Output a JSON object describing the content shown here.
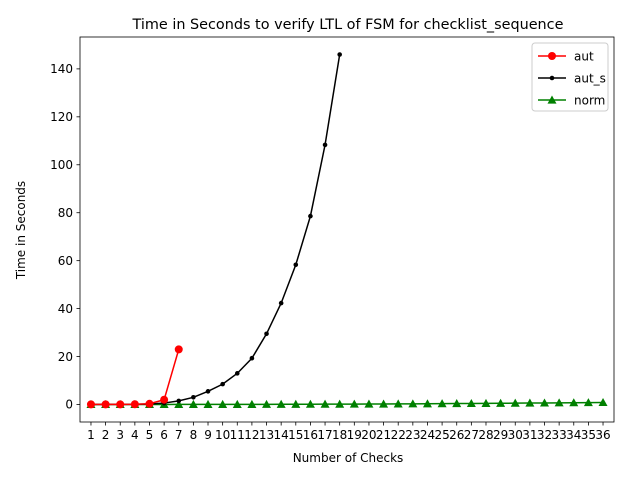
{
  "chart_data": {
    "type": "line",
    "title": "Time in Seconds to verify LTL of FSM for checklist_sequence",
    "xlabel": "Number of Checks",
    "ylabel": "Time in Seconds",
    "xlim": [
      0.25,
      36.75
    ],
    "ylim": [
      -7.3,
      153.3
    ],
    "x_ticks": [
      1,
      2,
      3,
      4,
      5,
      6,
      7,
      8,
      9,
      10,
      11,
      12,
      13,
      14,
      15,
      16,
      17,
      18,
      19,
      20,
      21,
      22,
      23,
      24,
      25,
      26,
      27,
      28,
      29,
      30,
      31,
      32,
      33,
      34,
      35,
      36
    ],
    "y_ticks": [
      0,
      20,
      40,
      60,
      80,
      100,
      120,
      140
    ],
    "legend_position": "top-right",
    "series": [
      {
        "name": "aut",
        "color": "#ff0000",
        "marker": "circle",
        "x": [
          1,
          2,
          3,
          4,
          5,
          6,
          7
        ],
        "y": [
          0.05,
          0.05,
          0.05,
          0.1,
          0.3,
          2.0,
          23.0
        ]
      },
      {
        "name": "aut_s",
        "color": "#000000",
        "marker": "point",
        "x": [
          1,
          2,
          3,
          4,
          5,
          6,
          7,
          8,
          9,
          10,
          11,
          12,
          13,
          14,
          15,
          16,
          17,
          18
        ],
        "y": [
          0.02,
          0.03,
          0.05,
          0.1,
          0.2,
          0.6,
          1.5,
          3.0,
          5.5,
          8.5,
          13.0,
          19.3,
          29.5,
          42.3,
          58.3,
          78.6,
          108.3,
          146.0
        ]
      },
      {
        "name": "norm",
        "color": "#008000",
        "marker": "triangle",
        "x": [
          1,
          2,
          3,
          4,
          5,
          6,
          7,
          8,
          9,
          10,
          11,
          12,
          13,
          14,
          15,
          16,
          17,
          18,
          19,
          20,
          21,
          22,
          23,
          24,
          25,
          26,
          27,
          28,
          29,
          30,
          31,
          32,
          33,
          34,
          35,
          36
        ],
        "y": [
          0.02,
          0.02,
          0.02,
          0.02,
          0.02,
          0.02,
          0.03,
          0.03,
          0.03,
          0.04,
          0.05,
          0.06,
          0.07,
          0.08,
          0.1,
          0.12,
          0.14,
          0.16,
          0.18,
          0.2,
          0.22,
          0.25,
          0.28,
          0.32,
          0.36,
          0.4,
          0.44,
          0.48,
          0.52,
          0.56,
          0.6,
          0.65,
          0.7,
          0.75,
          0.8,
          0.85
        ]
      }
    ]
  }
}
